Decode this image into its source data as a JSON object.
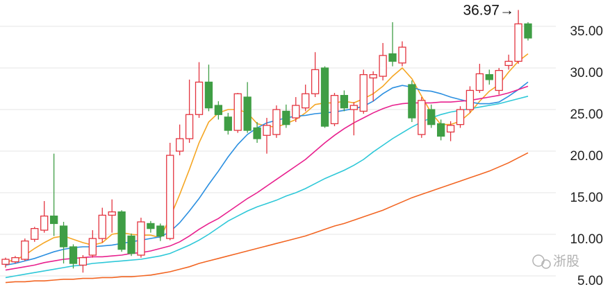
{
  "chart_data": {
    "type": "candlestick",
    "categories": [
      null,
      null,
      null,
      null,
      null,
      null,
      null,
      null,
      null,
      null,
      null,
      null,
      null,
      null,
      null,
      null,
      null,
      null,
      null,
      null,
      null,
      null,
      null,
      null,
      null,
      null,
      null,
      null,
      null,
      null,
      null,
      null,
      null,
      null,
      null,
      null,
      null,
      null,
      null,
      null,
      null,
      null,
      null,
      null,
      null,
      null,
      null,
      null,
      null,
      null,
      null,
      null,
      null,
      null,
      null
    ],
    "open": [
      6.4,
      6.7,
      7.0,
      9.4,
      10.5,
      12.2,
      11.0,
      8.5,
      6.3,
      7.5,
      9.5,
      12.3,
      12.7,
      9.8,
      7.5,
      11.3,
      11.0,
      9.5,
      20.0,
      21.5,
      24.4,
      28.3,
      25.5,
      24.1,
      22.5,
      26.5,
      22.8,
      21.9,
      22.0,
      24.8,
      24.0,
      25.2,
      26.9,
      30.0,
      23.3,
      26.7,
      25.0,
      24.8,
      28.8,
      29.0,
      31.7,
      30.6,
      28.0,
      22.0,
      25.0,
      23.3,
      22.3,
      23.2,
      25.0,
      27.3,
      29.2,
      27.3,
      30.3,
      30.8,
      35.3
    ],
    "high": [
      7.2,
      7.4,
      9.5,
      10.9,
      14.0,
      19.7,
      11.5,
      8.8,
      7.5,
      10.5,
      13.2,
      14.2,
      12.9,
      10.1,
      12.0,
      11.6,
      11.3,
      21.0,
      23.2,
      28.6,
      30.7,
      30.4,
      26.0,
      24.6,
      27.0,
      28.3,
      23.5,
      24.0,
      25.5,
      25.6,
      26.5,
      28.0,
      31.9,
      30.2,
      27.0,
      27.3,
      25.9,
      29.8,
      29.6,
      33.0,
      35.5,
      33.2,
      28.5,
      26.5,
      25.6,
      23.8,
      23.6,
      25.4,
      27.8,
      30.5,
      29.8,
      30.0,
      31.6,
      36.97,
      35.5
    ],
    "low": [
      6.0,
      6.5,
      6.8,
      9.1,
      10.2,
      9.8,
      6.5,
      5.9,
      5.4,
      7.2,
      9.0,
      10.2,
      7.9,
      7.4,
      7.2,
      10.2,
      9.2,
      9.3,
      19.5,
      21.0,
      24.0,
      24.8,
      23.8,
      22.0,
      22.2,
      22.2,
      21.0,
      19.7,
      21.6,
      22.8,
      23.5,
      24.8,
      26.5,
      22.8,
      23.0,
      24.8,
      21.9,
      24.5,
      26.0,
      28.5,
      30.2,
      30.2,
      23.5,
      21.6,
      22.8,
      21.3,
      21.2,
      22.8,
      24.6,
      27.0,
      28.0,
      26.8,
      29.8,
      30.5,
      33.3
    ],
    "close": [
      7.0,
      7.2,
      9.2,
      10.7,
      12.2,
      11.3,
      8.5,
      6.5,
      7.2,
      9.5,
      12.3,
      12.7,
      8.2,
      7.7,
      11.5,
      10.7,
      9.8,
      19.5,
      21.5,
      24.4,
      28.3,
      25.2,
      24.4,
      22.5,
      26.9,
      22.5,
      21.5,
      23.1,
      25.0,
      23.2,
      25.5,
      26.9,
      29.8,
      23.0,
      26.7,
      25.2,
      25.5,
      29.2,
      29.2,
      31.5,
      30.8,
      32.5,
      24.0,
      26.1,
      23.2,
      21.8,
      23.1,
      25.0,
      27.3,
      29.3,
      28.6,
      29.7,
      30.8,
      35.3,
      33.6
    ],
    "up_color": "#e3343f",
    "down_color": "#3f9e45",
    "series": [
      {
        "color": "#f5a623",
        "values": [
          6.7,
          6.9,
          7.5,
          8.3,
          9.0,
          9.6,
          9.8,
          9.4,
          9.0,
          8.7,
          9.0,
          10.0,
          10.2,
          10.0,
          9.9,
          9.9,
          9.6,
          12.0,
          14.8,
          17.8,
          21.0,
          23.5,
          24.6,
          25.0,
          25.0,
          24.6,
          23.3,
          23.0,
          22.9,
          23.3,
          23.8,
          24.6,
          25.6,
          25.8,
          25.8,
          26.0,
          25.8,
          26.3,
          26.9,
          27.8,
          29.0,
          30.0,
          28.7,
          26.6,
          24.6,
          23.2,
          23.2,
          23.6,
          24.6,
          26.0,
          27.2,
          28.0,
          29.5,
          30.8,
          31.7
        ]
      },
      {
        "color": "#2b8fe0",
        "values": [
          6.3,
          6.5,
          6.8,
          7.1,
          7.5,
          7.9,
          8.2,
          8.4,
          8.5,
          8.5,
          8.6,
          8.7,
          8.9,
          9.1,
          9.3,
          9.5,
          9.7,
          10.3,
          11.4,
          12.8,
          14.3,
          16.0,
          17.6,
          19.3,
          20.8,
          22.0,
          22.8,
          23.4,
          23.7,
          24.0,
          24.2,
          24.3,
          24.5,
          24.6,
          24.7,
          24.9,
          25.1,
          25.4,
          26.0,
          26.9,
          27.6,
          27.9,
          27.7,
          27.3,
          27.2,
          26.9,
          26.5,
          26.2,
          25.9,
          25.7,
          25.7,
          25.9,
          26.6,
          27.4,
          28.3
        ]
      },
      {
        "color": "#e8208e",
        "values": [
          5.7,
          5.9,
          6.1,
          6.3,
          6.6,
          6.8,
          7.0,
          7.1,
          7.2,
          7.3,
          7.3,
          7.4,
          7.5,
          7.7,
          7.8,
          8.0,
          8.3,
          8.6,
          9.1,
          9.8,
          10.6,
          11.3,
          11.9,
          12.7,
          13.5,
          14.3,
          15.0,
          15.8,
          16.6,
          17.4,
          18.2,
          19.0,
          20.0,
          21.0,
          21.9,
          22.7,
          23.4,
          24.0,
          24.6,
          25.1,
          25.5,
          25.7,
          25.8,
          25.8,
          25.8,
          25.9,
          25.9,
          26.0,
          26.1,
          26.3,
          26.5,
          26.7,
          27.0,
          27.4,
          27.8
        ]
      },
      {
        "color": "#2ec8d8",
        "values": [
          4.8,
          5.0,
          5.2,
          5.4,
          5.6,
          5.8,
          6.0,
          6.2,
          6.3,
          6.5,
          6.6,
          6.7,
          6.8,
          6.9,
          7.0,
          7.2,
          7.4,
          7.7,
          8.2,
          8.7,
          9.3,
          10.0,
          10.8,
          11.6,
          12.2,
          12.8,
          13.3,
          13.7,
          14.1,
          14.6,
          15.0,
          15.5,
          16.1,
          16.7,
          17.2,
          17.7,
          18.3,
          19.0,
          19.9,
          20.7,
          21.5,
          22.2,
          22.9,
          23.5,
          24.0,
          24.4,
          24.7,
          24.9,
          25.1,
          25.3,
          25.5,
          25.7,
          26.0,
          26.3,
          26.6
        ]
      },
      {
        "color": "#f26522",
        "values": [
          4.2,
          4.3,
          4.3,
          4.4,
          4.4,
          4.5,
          4.6,
          4.6,
          4.7,
          4.7,
          4.8,
          4.8,
          4.9,
          4.9,
          5.0,
          5.1,
          5.3,
          5.5,
          5.8,
          6.1,
          6.5,
          6.8,
          7.1,
          7.4,
          7.7,
          8.0,
          8.3,
          8.6,
          8.9,
          9.2,
          9.5,
          9.8,
          10.2,
          10.6,
          11.0,
          11.3,
          11.7,
          12.1,
          12.5,
          12.9,
          13.4,
          13.9,
          14.4,
          14.8,
          15.2,
          15.6,
          16.0,
          16.4,
          16.8,
          17.2,
          17.6,
          18.1,
          18.6,
          19.2,
          19.8
        ]
      }
    ],
    "ylim": [
      3.67,
      38.17
    ],
    "yticks": [
      {
        "value": 5,
        "label": "5.00"
      },
      {
        "value": 10,
        "label": "10.00"
      },
      {
        "value": 15,
        "label": "15.00"
      },
      {
        "value": 20,
        "label": "20.00"
      },
      {
        "value": 25,
        "label": "25.00"
      },
      {
        "value": 30,
        "label": "30.00"
      },
      {
        "value": 35,
        "label": "35.00"
      }
    ],
    "grid": true,
    "max_annotation": "36.97→",
    "watermark": "浙股"
  }
}
